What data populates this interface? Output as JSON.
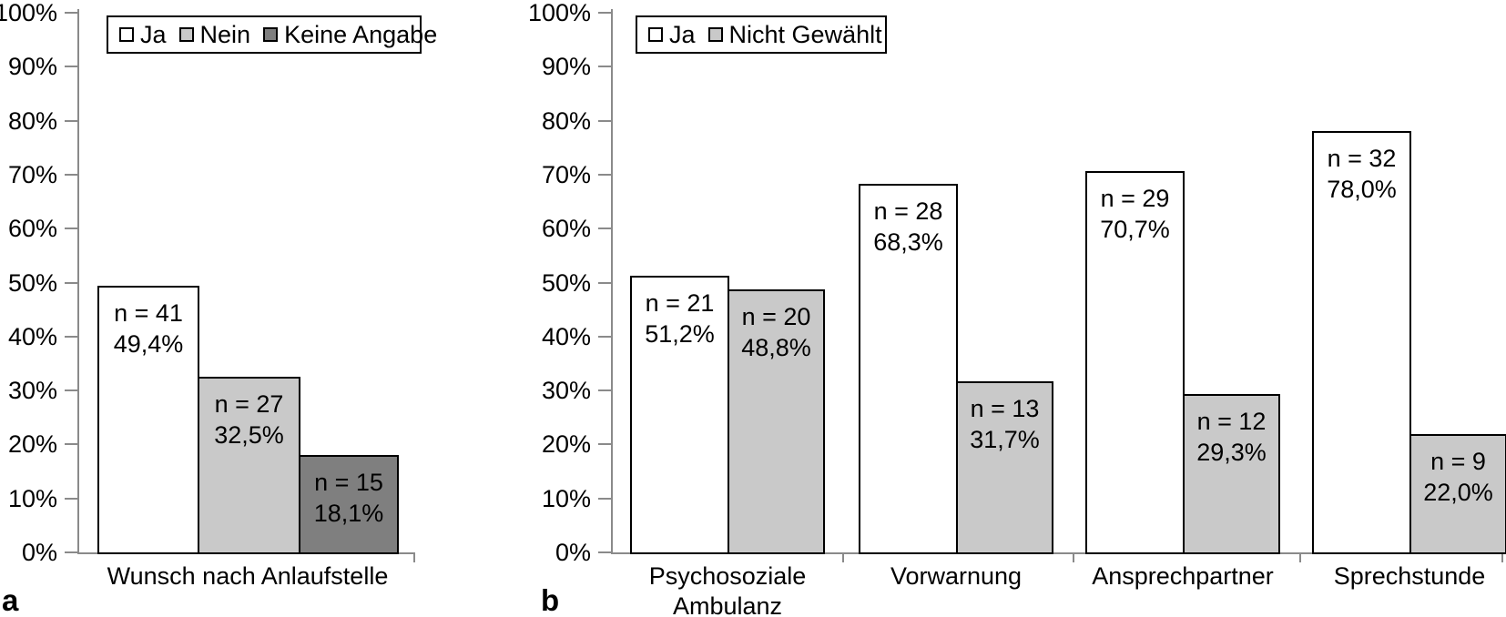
{
  "figure": {
    "description": "Two-panel bar chart figure, German survey results",
    "background": "#ffffff",
    "axis_color": "#8a8a8a",
    "bar_border_color": "#000000"
  },
  "chart_data": [
    {
      "type": "bar",
      "panel_label": "a",
      "title": "",
      "xlabel": "",
      "ylabel": "",
      "ylim": [
        0,
        100
      ],
      "ytick_step": 10,
      "yticks": [
        "0%",
        "10%",
        "20%",
        "30%",
        "40%",
        "50%",
        "60%",
        "70%",
        "80%",
        "90%",
        "100%"
      ],
      "grid": false,
      "legend_position": "top-left-inside",
      "legend": [
        {
          "label": "Ja",
          "color": "#ffffff"
        },
        {
          "label": "Nein",
          "color": "#c9c9c9"
        },
        {
          "label": "Keine Angabe",
          "color": "#7f7f7f"
        }
      ],
      "categories": [
        "Wunsch nach Anlaufstelle"
      ],
      "category_lines": [
        [
          "Wunsch nach Anlaufstelle"
        ]
      ],
      "series": [
        {
          "name": "Ja",
          "color": "#ffffff",
          "values": [
            49.4
          ],
          "counts": [
            41
          ],
          "bar_labels": [
            [
              "n = 41",
              "49,4%"
            ]
          ]
        },
        {
          "name": "Nein",
          "color": "#c9c9c9",
          "values": [
            32.5
          ],
          "counts": [
            27
          ],
          "bar_labels": [
            [
              "n = 27",
              "32,5%"
            ]
          ]
        },
        {
          "name": "Keine Angabe",
          "color": "#7f7f7f",
          "values": [
            18.1
          ],
          "counts": [
            15
          ],
          "bar_labels": [
            [
              "n = 15",
              "18,1%"
            ]
          ]
        }
      ]
    },
    {
      "type": "bar",
      "panel_label": "b",
      "title": "",
      "xlabel": "",
      "ylabel": "",
      "ylim": [
        0,
        100
      ],
      "ytick_step": 10,
      "yticks": [
        "0%",
        "10%",
        "20%",
        "30%",
        "40%",
        "50%",
        "60%",
        "70%",
        "80%",
        "90%",
        "100%"
      ],
      "grid": false,
      "legend_position": "top-left-inside",
      "legend": [
        {
          "label": "Ja",
          "color": "#ffffff"
        },
        {
          "label": "Nicht Gewählt",
          "color": "#c9c9c9"
        }
      ],
      "categories": [
        "Psychosoziale Ambulanz",
        "Vorwarnung",
        "Ansprechpartner",
        "Sprechstunde"
      ],
      "category_lines": [
        [
          "Psychosoziale",
          "Ambulanz"
        ],
        [
          "Vorwarnung"
        ],
        [
          "Ansprechpartner"
        ],
        [
          "Sprechstunde"
        ]
      ],
      "series": [
        {
          "name": "Ja",
          "color": "#ffffff",
          "values": [
            51.2,
            68.3,
            70.7,
            78.0
          ],
          "counts": [
            21,
            28,
            29,
            32
          ],
          "bar_labels": [
            [
              "n = 21",
              "51,2%"
            ],
            [
              "n = 28",
              "68,3%"
            ],
            [
              "n = 29",
              "70,7%"
            ],
            [
              "n = 32",
              "78,0%"
            ]
          ]
        },
        {
          "name": "Nicht Gewählt",
          "color": "#c9c9c9",
          "values": [
            48.8,
            31.7,
            29.3,
            22.0
          ],
          "counts": [
            20,
            13,
            12,
            9
          ],
          "bar_labels": [
            [
              "n = 20",
              "48,8%"
            ],
            [
              "n = 13",
              "31,7%"
            ],
            [
              "n = 12",
              "29,3%"
            ],
            [
              "n = 9",
              "22,0%"
            ]
          ]
        }
      ]
    }
  ]
}
